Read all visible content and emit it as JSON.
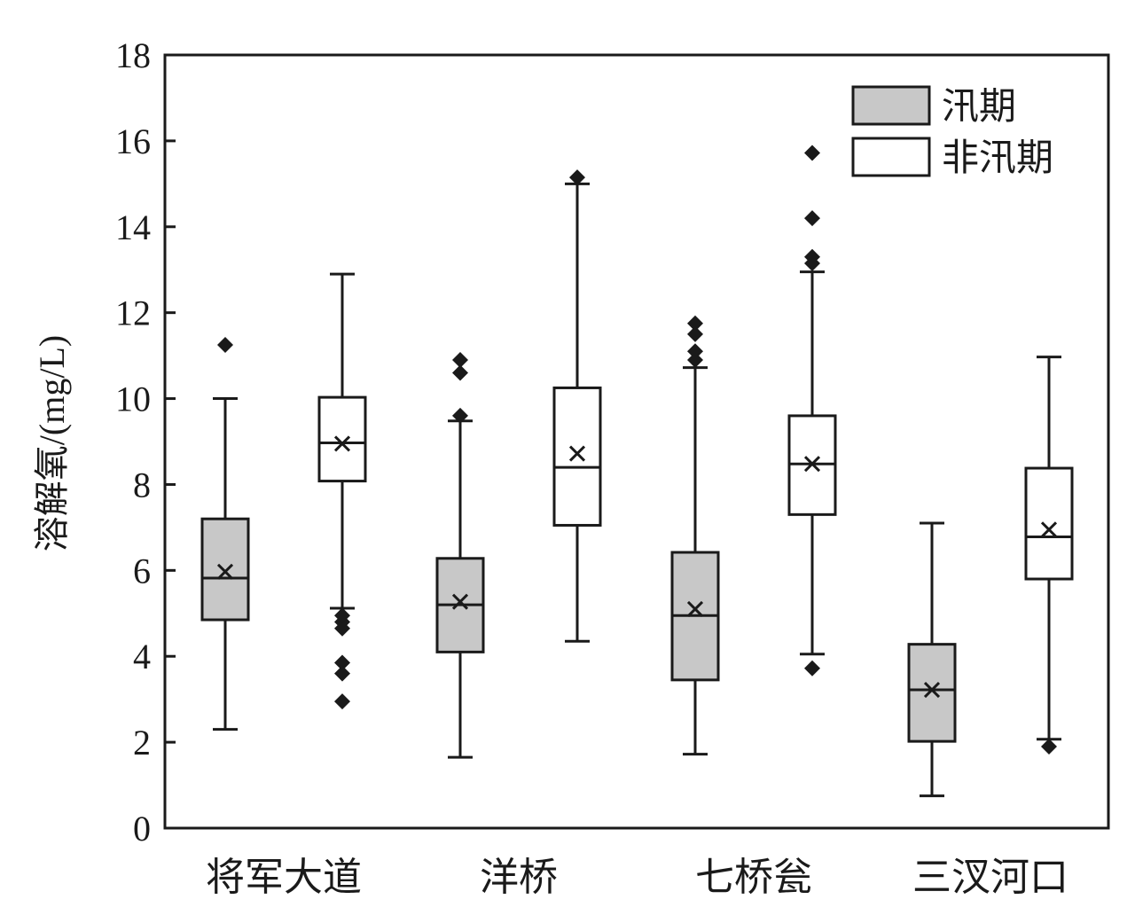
{
  "chart_data": {
    "type": "box",
    "ylabel": "溶解氧/(mg/L)",
    "xlabel": "",
    "ylim": [
      0,
      18
    ],
    "yticks": [
      "0",
      "2",
      "4",
      "6",
      "8",
      "10",
      "12",
      "14",
      "16",
      "18"
    ],
    "categories": [
      "将军大道",
      "洋桥",
      "七桥瓮",
      "三汊河口"
    ],
    "legend_position": "top-right",
    "grid": false,
    "series": [
      {
        "name": "汛期",
        "color": "#c8c8c8",
        "boxes": [
          {
            "min": 2.3,
            "q1": 4.85,
            "median": 5.82,
            "q3": 7.2,
            "max": 10.0,
            "mean": 5.97,
            "outliers": [
              11.25
            ]
          },
          {
            "min": 1.65,
            "q1": 4.1,
            "median": 5.2,
            "q3": 6.28,
            "max": 9.48,
            "mean": 5.27,
            "outliers": [
              9.6,
              10.6,
              10.9
            ]
          },
          {
            "min": 1.72,
            "q1": 3.45,
            "median": 4.95,
            "q3": 6.42,
            "max": 10.72,
            "mean": 5.1,
            "outliers": [
              10.9,
              11.1,
              11.5,
              11.75
            ]
          },
          {
            "min": 0.75,
            "q1": 2.02,
            "median": 3.22,
            "q3": 4.28,
            "max": 7.1,
            "mean": 3.22,
            "outliers": []
          }
        ]
      },
      {
        "name": "非汛期",
        "color": "#ffffff",
        "boxes": [
          {
            "min": 5.12,
            "q1": 8.08,
            "median": 8.97,
            "q3": 10.03,
            "max": 12.9,
            "mean": 8.95,
            "outliers": [
              2.95,
              3.6,
              3.85,
              4.65,
              4.8,
              4.95
            ]
          },
          {
            "min": 4.35,
            "q1": 7.05,
            "median": 8.4,
            "q3": 10.25,
            "max": 15.0,
            "mean": 8.72,
            "outliers": [
              15.15
            ]
          },
          {
            "min": 4.05,
            "q1": 7.3,
            "median": 8.48,
            "q3": 9.6,
            "max": 12.95,
            "mean": 8.48,
            "outliers": [
              3.72,
              13.15,
              13.3,
              14.2,
              15.72
            ]
          },
          {
            "min": 2.07,
            "q1": 5.8,
            "median": 6.78,
            "q3": 8.38,
            "max": 10.97,
            "mean": 6.95,
            "outliers": [
              1.9
            ]
          }
        ]
      }
    ]
  }
}
